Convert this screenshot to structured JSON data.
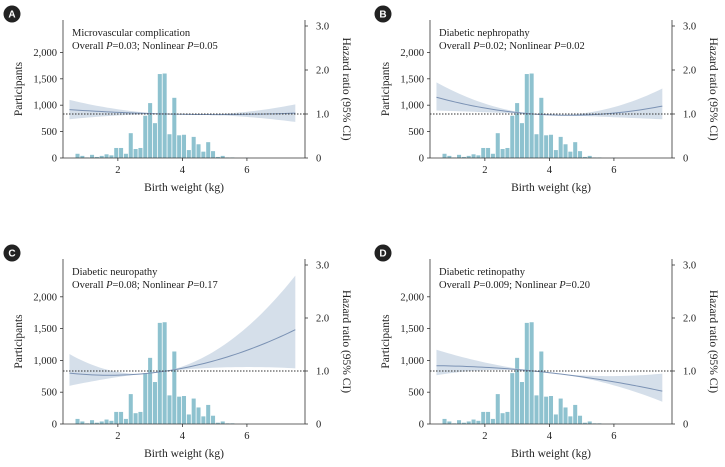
{
  "colors": {
    "bar": "#8ec2cf",
    "bar_stroke": "#6aa7b6",
    "band": "#c9d6e4",
    "curve": "#7b92b4",
    "axis": "#333333",
    "badge": "#222222",
    "ref_line": "#333333"
  },
  "chart_data": [
    {
      "panel": "A",
      "type": "bar+line",
      "title": "Microvascular complication",
      "stat_prefix": "Overall",
      "p_overall": "0.03",
      "nonlinear_prefix": "; Nonlinear",
      "p_nonlinear": "0.05",
      "xlabel": "Birth weight (kg)",
      "ylabel_left": "Participants",
      "ylabel_right": "Hazard ratio (95% CI)",
      "xlim": [
        0.3,
        7.8
      ],
      "ylim_left": [
        0,
        2500
      ],
      "ylim_right": [
        0,
        3.0
      ],
      "xticks": [
        "2",
        "4",
        "6"
      ],
      "yticks_left": [
        "0",
        "500",
        "1,000",
        "1,500",
        "2,000"
      ],
      "yticks_right": [
        "0",
        "1.0",
        "2.0",
        "3.0"
      ],
      "hr_reference": 1.0,
      "hr_curve": {
        "x": [
          0.5,
          3.5,
          7.5
        ],
        "y": [
          1.1,
          1.0,
          1.02
        ],
        "lower": [
          0.88,
          1.0,
          0.82
        ],
        "upper": [
          1.32,
          1.0,
          1.22
        ]
      }
    },
    {
      "panel": "B",
      "type": "bar+line",
      "title": "Diabetic nephropathy",
      "stat_prefix": "Overall",
      "p_overall": "0.02",
      "nonlinear_prefix": "; Nonlinear",
      "p_nonlinear": "0.02",
      "xlabel": "Birth weight (kg)",
      "ylabel_left": "Participants",
      "ylabel_right": "Hazard ratio (95% CI)",
      "xlim": [
        0.3,
        7.8
      ],
      "ylim_left": [
        0,
        2500
      ],
      "ylim_right": [
        0,
        3.0
      ],
      "xticks": [
        "2",
        "4",
        "6"
      ],
      "yticks_left": [
        "0",
        "500",
        "1,000",
        "1,500",
        "2,000"
      ],
      "yticks_right": [
        "0",
        "1.0",
        "2.0",
        "3.0"
      ],
      "hr_reference": 1.0,
      "hr_curve": {
        "x": [
          0.5,
          3.5,
          7.5
        ],
        "y": [
          1.38,
          1.0,
          1.18
        ],
        "lower": [
          1.08,
          1.0,
          0.88
        ],
        "upper": [
          1.72,
          1.0,
          1.58
        ]
      }
    },
    {
      "panel": "C",
      "type": "bar+line",
      "title": "Diabetic neuropathy",
      "stat_prefix": "Overall",
      "p_overall": "0.08",
      "nonlinear_prefix": "; Nonlinear",
      "p_nonlinear": "0.17",
      "xlabel": "Birth weight (kg)",
      "ylabel_left": "Participants",
      "ylabel_right": "Hazard ratio (95% CI)",
      "xlim": [
        0.3,
        7.8
      ],
      "ylim_left": [
        0,
        2500
      ],
      "ylim_right": [
        0,
        3.0
      ],
      "xticks": [
        "2",
        "4",
        "6"
      ],
      "yticks_left": [
        "0",
        "500",
        "1,000",
        "1,500",
        "2,000"
      ],
      "yticks_right": [
        "0",
        "1.0",
        "2.0",
        "3.0"
      ],
      "hr_reference": 1.0,
      "hr_curve": {
        "x": [
          0.5,
          3.5,
          7.5
        ],
        "y": [
          0.96,
          1.0,
          1.78
        ],
        "lower": [
          0.72,
          1.0,
          1.05
        ],
        "upper": [
          1.32,
          1.0,
          2.8
        ]
      }
    },
    {
      "panel": "D",
      "type": "bar+line",
      "title": "Diabetic retinopathy",
      "stat_prefix": "Overall",
      "p_overall": "0.009",
      "nonlinear_prefix": "; Nonlinear",
      "p_nonlinear": "0.20",
      "xlabel": "Birth weight (kg)",
      "ylabel_left": "Participants",
      "ylabel_right": "Hazard ratio (95% CI)",
      "xlim": [
        0.3,
        7.8
      ],
      "ylim_left": [
        0,
        2500
      ],
      "ylim_right": [
        0,
        3.0
      ],
      "xticks": [
        "2",
        "4",
        "6"
      ],
      "yticks_left": [
        "0",
        "500",
        "1,000",
        "1,500",
        "2,000"
      ],
      "yticks_right": [
        "0",
        "1.0",
        "2.0",
        "3.0"
      ],
      "hr_reference": 1.0,
      "hr_curve": {
        "x": [
          0.5,
          3.5,
          7.5
        ],
        "y": [
          1.1,
          1.0,
          0.62
        ],
        "lower": [
          0.92,
          1.0,
          0.42
        ],
        "upper": [
          1.4,
          1.0,
          0.95
        ]
      }
    }
  ],
  "histogram": {
    "bin_width": 0.15,
    "bins": [
      {
        "x": 0.75,
        "count": 80
      },
      {
        "x": 0.9,
        "count": 40
      },
      {
        "x": 1.05,
        "count": 10
      },
      {
        "x": 1.2,
        "count": 60
      },
      {
        "x": 1.35,
        "count": 20
      },
      {
        "x": 1.5,
        "count": 40
      },
      {
        "x": 1.65,
        "count": 70
      },
      {
        "x": 1.8,
        "count": 50
      },
      {
        "x": 1.95,
        "count": 190
      },
      {
        "x": 2.1,
        "count": 190
      },
      {
        "x": 2.25,
        "count": 80
      },
      {
        "x": 2.4,
        "count": 470
      },
      {
        "x": 2.55,
        "count": 170
      },
      {
        "x": 2.7,
        "count": 190
      },
      {
        "x": 2.85,
        "count": 800
      },
      {
        "x": 3.0,
        "count": 1040
      },
      {
        "x": 3.15,
        "count": 660
      },
      {
        "x": 3.3,
        "count": 1590
      },
      {
        "x": 3.45,
        "count": 1600
      },
      {
        "x": 3.6,
        "count": 450
      },
      {
        "x": 3.75,
        "count": 1140
      },
      {
        "x": 3.9,
        "count": 430
      },
      {
        "x": 4.05,
        "count": 440
      },
      {
        "x": 4.2,
        "count": 150
      },
      {
        "x": 4.35,
        "count": 400
      },
      {
        "x": 4.5,
        "count": 260
      },
      {
        "x": 4.65,
        "count": 120
      },
      {
        "x": 4.8,
        "count": 300
      },
      {
        "x": 4.95,
        "count": 130
      },
      {
        "x": 5.1,
        "count": 20
      },
      {
        "x": 5.25,
        "count": 40
      },
      {
        "x": 5.4,
        "count": 10
      },
      {
        "x": 5.55,
        "count": 10
      },
      {
        "x": 6.0,
        "count": 5
      }
    ]
  }
}
